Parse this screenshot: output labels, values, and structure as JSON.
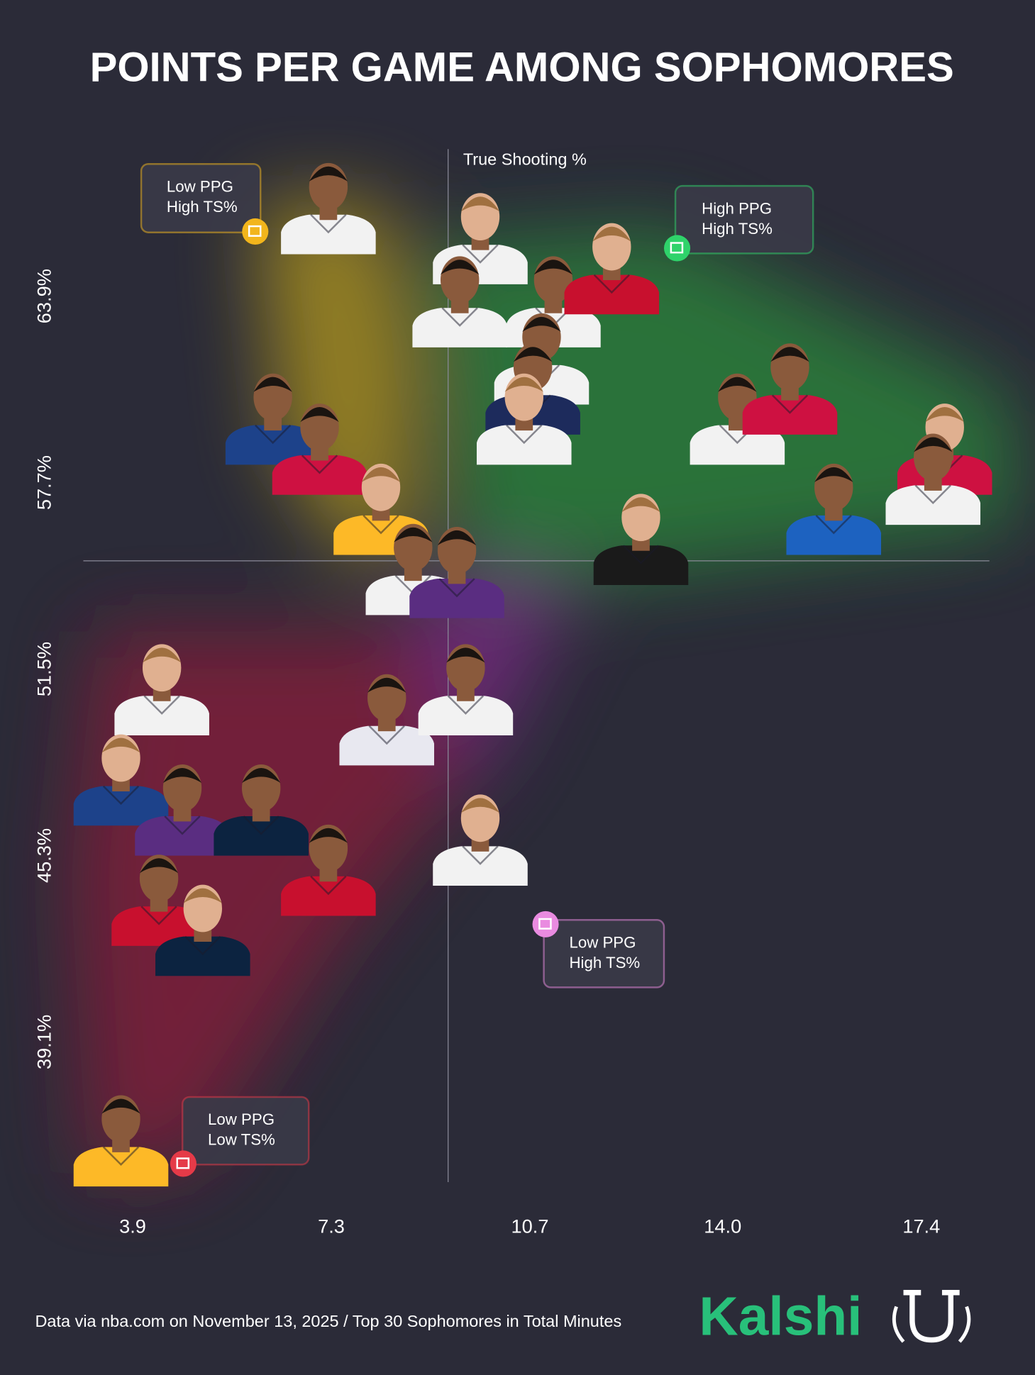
{
  "chart_data": {
    "type": "scatter",
    "title": "POINTS PER GAME AMONG SOPHOMORES",
    "ylabel": "True Shooting %",
    "x": [
      7.25,
      9.85,
      9.5,
      11.1,
      12.1,
      10.9,
      10.75,
      10.6,
      6.3,
      7.1,
      8.15,
      8.7,
      9.45,
      12.6,
      14.25,
      15.15,
      17.8,
      17.6,
      15.9,
      4.4,
      8.25,
      9.6,
      3.7,
      4.75,
      6.1,
      9.85,
      7.25,
      4.35,
      5.1,
      3.7
    ],
    "values": [
      66.9,
      65.9,
      63.8,
      63.8,
      64.9,
      61.9,
      60.9,
      59.9,
      59.9,
      58.9,
      56.9,
      54.9,
      54.8,
      55.9,
      59.9,
      60.9,
      58.9,
      57.9,
      56.9,
      50.9,
      49.9,
      50.9,
      47.9,
      46.9,
      46.9,
      45.9,
      44.9,
      43.9,
      42.9,
      35.9
    ],
    "colors": [
      "#f2f2f2",
      "#f2f2f2",
      "#f2f2f2",
      "#f2f2f2",
      "#c8102e",
      "#f2f2f2",
      "#1d2b5c",
      "#f2f2f2",
      "#1d428a",
      "#ce1141",
      "#fdb927",
      "#f2f2f2",
      "#5a2d81",
      "#1a1a1a",
      "#f2f2f2",
      "#ce1141",
      "#ce1141",
      "#f2f2f2",
      "#1d62c0",
      "#f2f2f2",
      "#e8e8f0",
      "#f2f2f2",
      "#1d428a",
      "#5a2d81",
      "#0c2340",
      "#f2f2f2",
      "#c8102e",
      "#c8102e",
      "#0c2340",
      "#fdb927"
    ],
    "xlim": [
      2.2,
      19.0
    ],
    "ylim": [
      34.5,
      68.5
    ],
    "xticks": [
      3.9,
      7.3,
      10.7,
      {
        "value": 14.0,
        "label": "14.0"
      },
      17.4
    ],
    "yticks": [
      {
        "value": 39.1,
        "label": "39.1%"
      },
      {
        "value": 45.3,
        "label": "45.3%"
      },
      {
        "value": 51.5,
        "label": "51.5%"
      },
      {
        "value": 57.7,
        "label": "57.7%"
      },
      {
        "value": 63.9,
        "label": "63.9%"
      }
    ],
    "reference_lines": {
      "x": 9.3,
      "y": 55.1
    },
    "annotations": [
      {
        "lines": [
          "Low PPG",
          "High TS%"
        ],
        "color": "#f2b51c"
      },
      {
        "lines": [
          "High PPG",
          "High TS%"
        ],
        "color": "#2fd36a"
      },
      {
        "lines": [
          "Low PPG",
          "High TS%"
        ],
        "color": "#e98be0"
      },
      {
        "lines": [
          "Low PPG",
          "Low TS%"
        ],
        "color": "#e53a48"
      }
    ],
    "source": "Data via nba.com on November 13, 2025 / Top 30 Sophomores in Total Minutes",
    "brand": "Kalshi"
  }
}
